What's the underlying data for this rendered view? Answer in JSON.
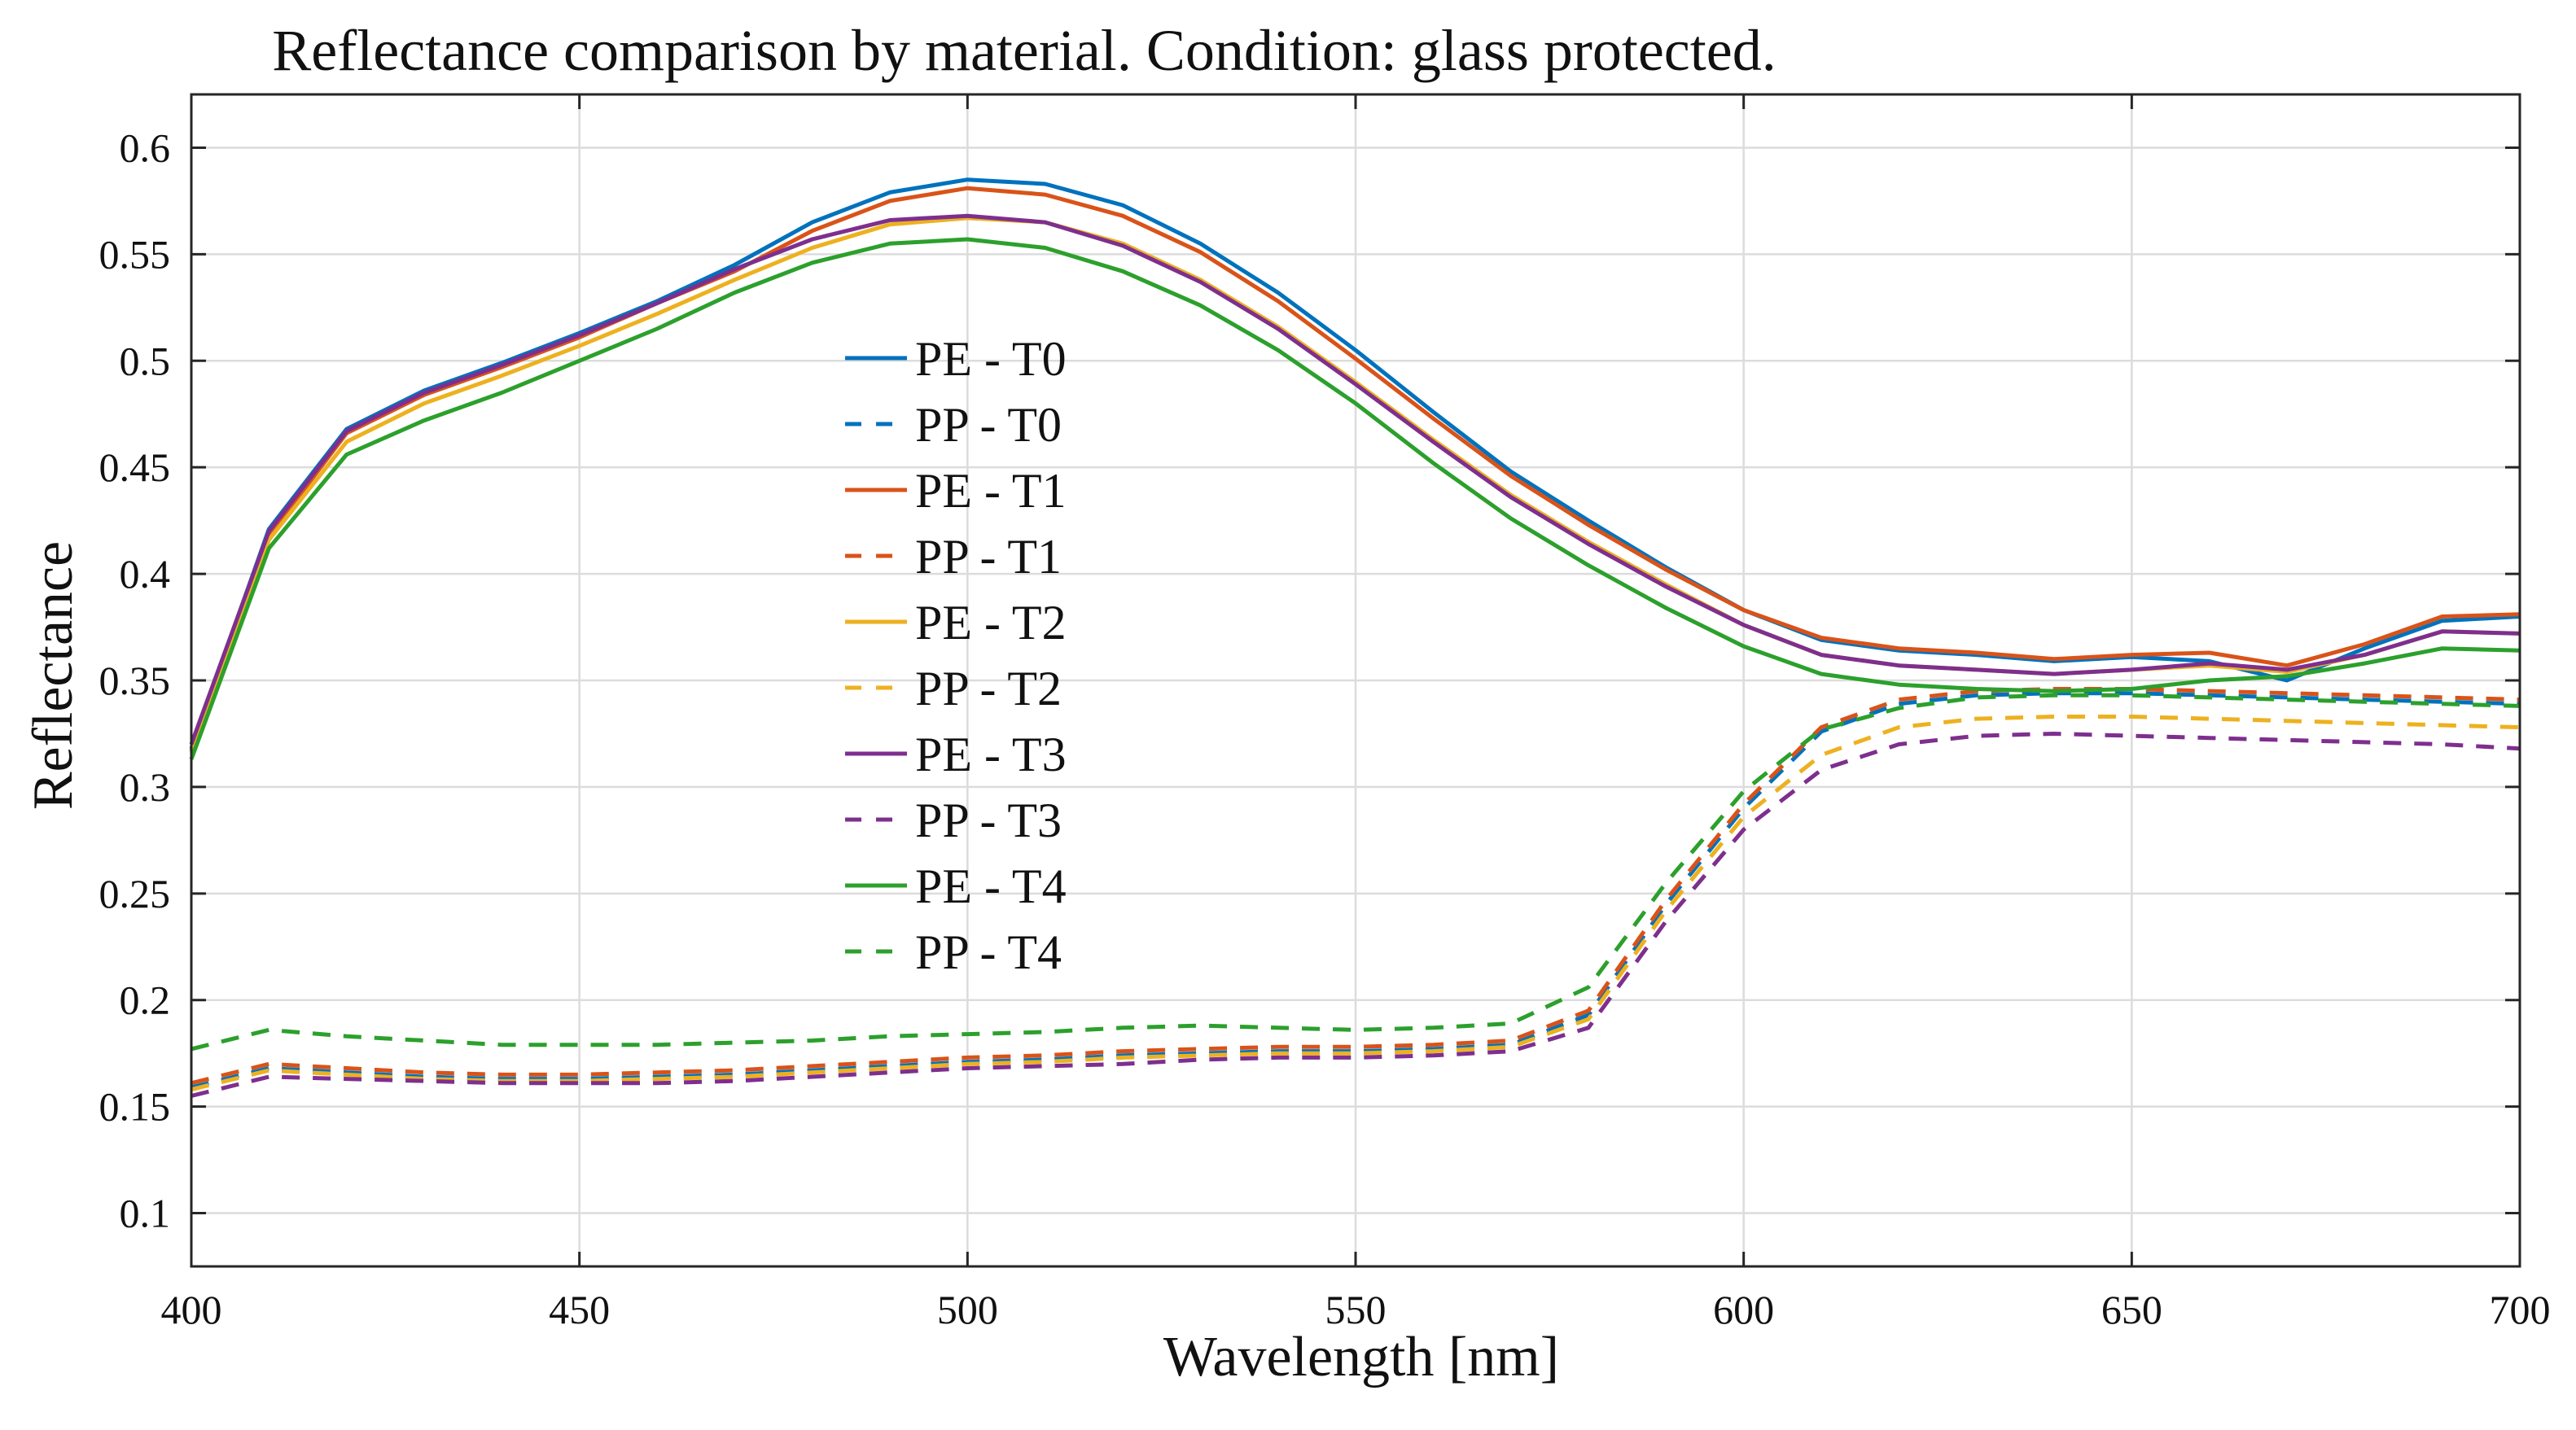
{
  "chart_data": {
    "type": "line",
    "title": "Reflectance comparison by material. Condition: glass protected.",
    "xlabel": "Wavelength [nm]",
    "ylabel": "Reflectance",
    "xlim": [
      400,
      700
    ],
    "ylim": [
      0.075,
      0.625
    ],
    "xticks": [
      400,
      450,
      500,
      550,
      600,
      650,
      700
    ],
    "xtick_labels": [
      "400",
      "450",
      "500",
      "550",
      "600",
      "650",
      "700"
    ],
    "yticks": [
      0.1,
      0.15,
      0.2,
      0.25,
      0.3,
      0.35,
      0.4,
      0.45,
      0.5,
      0.55,
      0.6
    ],
    "ytick_labels": [
      "0.1",
      "0.15",
      "0.2",
      "0.25",
      "0.3",
      "0.35",
      "0.4",
      "0.45",
      "0.5",
      "0.55",
      "0.6"
    ],
    "grid": true,
    "legend_position": "center",
    "x": [
      400,
      410,
      420,
      430,
      440,
      450,
      460,
      470,
      480,
      490,
      500,
      510,
      520,
      530,
      540,
      550,
      560,
      570,
      580,
      590,
      600,
      610,
      620,
      630,
      640,
      650,
      660,
      670,
      680,
      690,
      700
    ],
    "series": [
      {
        "name": "PE - T0",
        "color": "#0072BD",
        "style": "solid",
        "values": [
          0.318,
          0.421,
          0.468,
          0.486,
          0.499,
          0.513,
          0.528,
          0.545,
          0.565,
          0.579,
          0.585,
          0.583,
          0.573,
          0.555,
          0.532,
          0.505,
          0.476,
          0.448,
          0.425,
          0.403,
          0.383,
          0.369,
          0.364,
          0.362,
          0.359,
          0.361,
          0.359,
          0.35,
          0.365,
          0.378,
          0.38
        ]
      },
      {
        "name": "PP - T0",
        "color": "#0072BD",
        "style": "dashed",
        "values": [
          0.159,
          0.168,
          0.166,
          0.164,
          0.163,
          0.163,
          0.164,
          0.165,
          0.167,
          0.169,
          0.171,
          0.172,
          0.174,
          0.175,
          0.176,
          0.176,
          0.177,
          0.179,
          0.193,
          0.245,
          0.29,
          0.326,
          0.339,
          0.343,
          0.344,
          0.344,
          0.343,
          0.342,
          0.341,
          0.34,
          0.339
        ]
      },
      {
        "name": "PE - T1",
        "color": "#D95319",
        "style": "solid",
        "values": [
          0.317,
          0.418,
          0.466,
          0.484,
          0.497,
          0.511,
          0.527,
          0.542,
          0.561,
          0.575,
          0.581,
          0.578,
          0.568,
          0.551,
          0.528,
          0.501,
          0.473,
          0.446,
          0.423,
          0.402,
          0.383,
          0.37,
          0.365,
          0.363,
          0.36,
          0.362,
          0.363,
          0.357,
          0.367,
          0.38,
          0.381
        ]
      },
      {
        "name": "PP - T1",
        "color": "#D95319",
        "style": "dashed",
        "values": [
          0.161,
          0.17,
          0.168,
          0.166,
          0.165,
          0.165,
          0.166,
          0.167,
          0.169,
          0.171,
          0.173,
          0.174,
          0.176,
          0.177,
          0.178,
          0.178,
          0.179,
          0.181,
          0.195,
          0.247,
          0.292,
          0.328,
          0.341,
          0.345,
          0.346,
          0.346,
          0.345,
          0.344,
          0.343,
          0.342,
          0.341
        ]
      },
      {
        "name": "PE - T2",
        "color": "#EDB120",
        "style": "solid",
        "values": [
          0.316,
          0.416,
          0.462,
          0.48,
          0.493,
          0.507,
          0.522,
          0.538,
          0.553,
          0.564,
          0.567,
          0.565,
          0.555,
          0.538,
          0.516,
          0.49,
          0.463,
          0.437,
          0.415,
          0.395,
          0.376,
          0.362,
          0.357,
          0.355,
          0.353,
          0.355,
          0.357,
          0.354,
          0.362,
          0.373,
          0.372
        ]
      },
      {
        "name": "PP - T2",
        "color": "#EDB120",
        "style": "dashed",
        "values": [
          0.158,
          0.167,
          0.165,
          0.163,
          0.162,
          0.162,
          0.163,
          0.164,
          0.166,
          0.168,
          0.17,
          0.171,
          0.173,
          0.174,
          0.175,
          0.175,
          0.176,
          0.178,
          0.191,
          0.242,
          0.286,
          0.315,
          0.328,
          0.332,
          0.333,
          0.333,
          0.332,
          0.331,
          0.33,
          0.329,
          0.328
        ]
      },
      {
        "name": "PE - T3",
        "color": "#7E2F8E",
        "style": "solid",
        "values": [
          0.32,
          0.42,
          0.467,
          0.485,
          0.498,
          0.512,
          0.527,
          0.543,
          0.557,
          0.566,
          0.568,
          0.565,
          0.554,
          0.537,
          0.515,
          0.489,
          0.462,
          0.436,
          0.414,
          0.394,
          0.376,
          0.362,
          0.357,
          0.355,
          0.353,
          0.355,
          0.358,
          0.355,
          0.362,
          0.373,
          0.372
        ]
      },
      {
        "name": "PP - T3",
        "color": "#7E2F8E",
        "style": "dashed",
        "values": [
          0.155,
          0.164,
          0.163,
          0.162,
          0.161,
          0.161,
          0.161,
          0.162,
          0.164,
          0.166,
          0.168,
          0.169,
          0.17,
          0.172,
          0.173,
          0.173,
          0.174,
          0.176,
          0.187,
          0.237,
          0.28,
          0.308,
          0.32,
          0.324,
          0.325,
          0.324,
          0.323,
          0.322,
          0.321,
          0.32,
          0.318
        ]
      },
      {
        "name": "PE - T4",
        "color": "#2CA02C",
        "style": "solid",
        "values": [
          0.313,
          0.412,
          0.456,
          0.472,
          0.485,
          0.5,
          0.515,
          0.532,
          0.546,
          0.555,
          0.557,
          0.553,
          0.542,
          0.526,
          0.505,
          0.48,
          0.452,
          0.426,
          0.404,
          0.384,
          0.366,
          0.353,
          0.348,
          0.346,
          0.345,
          0.346,
          0.35,
          0.352,
          0.358,
          0.365,
          0.364
        ]
      },
      {
        "name": "PP - T4",
        "color": "#2CA02C",
        "style": "dashed",
        "values": [
          0.177,
          0.186,
          0.183,
          0.181,
          0.179,
          0.179,
          0.179,
          0.18,
          0.181,
          0.183,
          0.184,
          0.185,
          0.187,
          0.188,
          0.187,
          0.186,
          0.187,
          0.189,
          0.206,
          0.255,
          0.298,
          0.327,
          0.337,
          0.342,
          0.343,
          0.343,
          0.342,
          0.341,
          0.34,
          0.339,
          0.338
        ]
      }
    ]
  }
}
